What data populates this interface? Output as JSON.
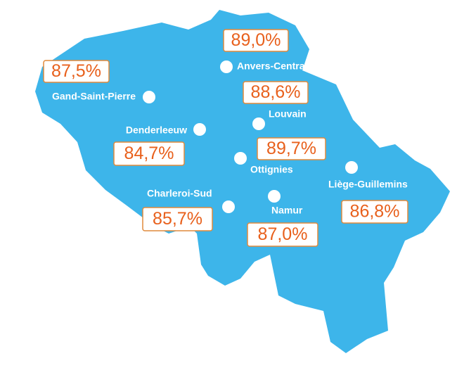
{
  "stations": [
    {
      "name": "Anvers-Central",
      "rate": "89,0%"
    },
    {
      "name": "Gand-Saint-Pierre",
      "rate": "87,5%"
    },
    {
      "name": "Louvain",
      "rate": "88,6%"
    },
    {
      "name": "Denderleeuw",
      "rate": "84,7%"
    },
    {
      "name": "Ottignies",
      "rate": "89,7%"
    },
    {
      "name": "Liège-Guillemins",
      "rate": "86,8%"
    },
    {
      "name": "Charleroi-Sud",
      "rate": "85,7%"
    },
    {
      "name": "Namur",
      "rate": "87,0%"
    }
  ]
}
